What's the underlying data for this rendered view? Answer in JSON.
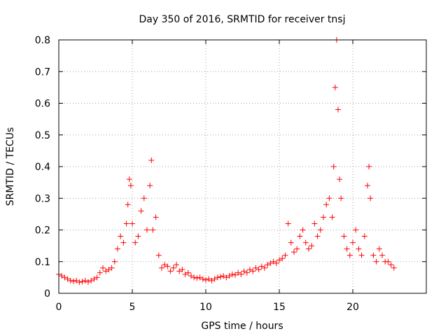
{
  "chart_data": {
    "type": "scatter",
    "title": "Day 350 of 2016, SRMTID for receiver tnsj",
    "xlabel": "GPS time / hours",
    "ylabel": "SRMTID / TECUs",
    "xlim": [
      0,
      25
    ],
    "ylim": [
      0,
      0.8
    ],
    "x_ticks": [
      0,
      5,
      10,
      15,
      20
    ],
    "y_ticks": [
      0,
      0.1,
      0.2,
      0.3,
      0.4,
      0.5,
      0.6,
      0.7,
      0.8
    ],
    "x_tick_labels": [
      "0",
      "5",
      "10",
      "15",
      "20"
    ],
    "y_tick_labels": [
      "0",
      "0.1",
      "0.2",
      "0.3",
      "0.4",
      "0.5",
      "0.6",
      "0.7",
      "0.8"
    ],
    "grid": true,
    "marker": "+",
    "color": "#ff0000",
    "series": [
      {
        "name": "SRMTID",
        "x": [
          0.0,
          0.2,
          0.4,
          0.6,
          0.8,
          1.0,
          1.2,
          1.4,
          1.6,
          1.8,
          2.0,
          2.2,
          2.4,
          2.6,
          2.8,
          3.0,
          3.2,
          3.4,
          3.6,
          3.8,
          4.0,
          4.2,
          4.4,
          4.6,
          4.7,
          4.8,
          4.9,
          5.0,
          5.2,
          5.4,
          5.6,
          5.8,
          6.0,
          6.2,
          6.3,
          6.4,
          6.6,
          6.8,
          7.0,
          7.2,
          7.4,
          7.6,
          7.8,
          8.0,
          8.2,
          8.4,
          8.6,
          8.8,
          9.0,
          9.2,
          9.4,
          9.6,
          9.8,
          10.0,
          10.2,
          10.4,
          10.6,
          10.8,
          11.0,
          11.2,
          11.4,
          11.6,
          11.8,
          12.0,
          12.2,
          12.4,
          12.6,
          12.8,
          13.0,
          13.2,
          13.4,
          13.6,
          13.8,
          14.0,
          14.2,
          14.4,
          14.6,
          14.8,
          15.0,
          15.2,
          15.4,
          15.6,
          15.8,
          16.0,
          16.2,
          16.4,
          16.6,
          16.8,
          17.0,
          17.2,
          17.4,
          17.6,
          17.8,
          18.0,
          18.2,
          18.4,
          18.6,
          18.7,
          18.8,
          18.9,
          19.0,
          19.1,
          19.2,
          19.4,
          19.6,
          19.8,
          20.0,
          20.2,
          20.4,
          20.6,
          20.8,
          21.0,
          21.1,
          21.2,
          21.4,
          21.6,
          21.8,
          22.0,
          22.2,
          22.4,
          22.6,
          22.8
        ],
        "y": [
          0.06,
          0.055,
          0.05,
          0.045,
          0.04,
          0.038,
          0.04,
          0.035,
          0.037,
          0.04,
          0.036,
          0.04,
          0.045,
          0.05,
          0.065,
          0.08,
          0.07,
          0.075,
          0.08,
          0.1,
          0.14,
          0.18,
          0.16,
          0.22,
          0.28,
          0.36,
          0.34,
          0.22,
          0.16,
          0.18,
          0.26,
          0.3,
          0.2,
          0.34,
          0.42,
          0.2,
          0.24,
          0.12,
          0.08,
          0.09,
          0.085,
          0.07,
          0.08,
          0.09,
          0.07,
          0.075,
          0.06,
          0.065,
          0.055,
          0.05,
          0.048,
          0.05,
          0.045,
          0.042,
          0.045,
          0.04,
          0.045,
          0.05,
          0.052,
          0.055,
          0.05,
          0.055,
          0.06,
          0.058,
          0.065,
          0.06,
          0.07,
          0.065,
          0.075,
          0.07,
          0.08,
          0.075,
          0.085,
          0.08,
          0.09,
          0.095,
          0.1,
          0.095,
          0.105,
          0.11,
          0.12,
          0.22,
          0.16,
          0.13,
          0.14,
          0.18,
          0.2,
          0.16,
          0.14,
          0.15,
          0.22,
          0.18,
          0.2,
          0.24,
          0.28,
          0.3,
          0.24,
          0.4,
          0.65,
          0.8,
          0.58,
          0.36,
          0.3,
          0.18,
          0.14,
          0.12,
          0.16,
          0.2,
          0.14,
          0.12,
          0.18,
          0.34,
          0.4,
          0.3,
          0.12,
          0.1,
          0.14,
          0.12,
          0.1,
          0.1,
          0.09,
          0.08
        ]
      }
    ]
  }
}
